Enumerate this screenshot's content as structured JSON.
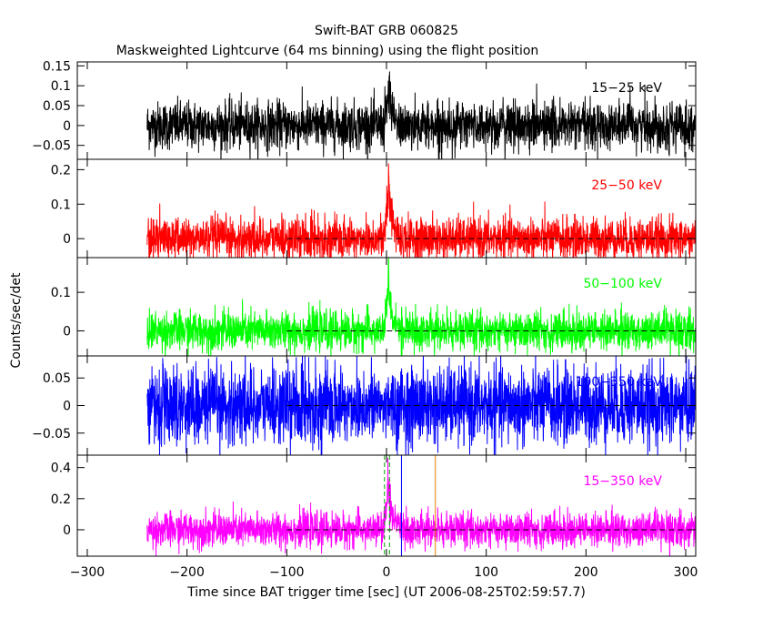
{
  "chart_data": {
    "type": "line",
    "title": "Swift-BAT GRB 060825",
    "subtitle": "Maskweighted Lightcurve (64 ms binning) using the flight position",
    "xlabel": "Time since BAT trigger time [sec] (UT 2006-08-25T02:59:57.7)",
    "ylabel": "Counts/sec/det",
    "xlim": [
      -310,
      310
    ],
    "xticks": [
      -300,
      -200,
      -100,
      0,
      100,
      200,
      300
    ],
    "data_range": [
      -240,
      310
    ],
    "dashed_zero_from": -100,
    "panels": [
      {
        "name": "15−25 keV",
        "color": "#000000",
        "ylim": [
          -0.085,
          0.16
        ],
        "yticks": [
          -0.05,
          0,
          0.05,
          0.1,
          0.15
        ],
        "ytick_labels": [
          "−0.05",
          "0",
          "0.05",
          "0.1",
          "0.15"
        ],
        "noise": 0.03,
        "peak": 0.11,
        "zero_line": false
      },
      {
        "name": "25−50 keV",
        "color": "#ff0000",
        "ylim": [
          -0.055,
          0.23
        ],
        "yticks": [
          0,
          0.1,
          0.2
        ],
        "ytick_labels": [
          "0",
          "0.1",
          "0.2"
        ],
        "noise": 0.03,
        "peak": 0.18,
        "zero_line": true
      },
      {
        "name": "50−100 keV",
        "color": "#00ff00",
        "ylim": [
          -0.065,
          0.19
        ],
        "yticks": [
          0,
          0.1
        ],
        "ytick_labels": [
          "0",
          "0.1"
        ],
        "noise": 0.025,
        "peak": 0.14,
        "zero_line": true
      },
      {
        "name": "100−350 keV",
        "color": "#0000ff",
        "ylim": [
          -0.09,
          0.09
        ],
        "yticks": [
          -0.05,
          0,
          0.05
        ],
        "ytick_labels": [
          "−0.05",
          "0",
          "0.05"
        ],
        "noise": 0.035,
        "peak": 0.02,
        "zero_line": true
      },
      {
        "name": "15−350 keV",
        "color": "#ff00ff",
        "ylim": [
          -0.17,
          0.48
        ],
        "yticks": [
          0,
          0.2,
          0.4
        ],
        "ytick_labels": [
          "0",
          "0.2",
          "0.4"
        ],
        "noise": 0.055,
        "peak": 0.35,
        "zero_line": true,
        "markers": [
          {
            "x": -2,
            "color": "#00a000",
            "style": "dashed"
          },
          {
            "x": 3,
            "color": "#00a000",
            "style": "dashed"
          },
          {
            "x": 15,
            "color": "#0000ff",
            "style": "solid"
          },
          {
            "x": 49,
            "color": "#e08000",
            "style": "solid"
          }
        ]
      }
    ]
  }
}
